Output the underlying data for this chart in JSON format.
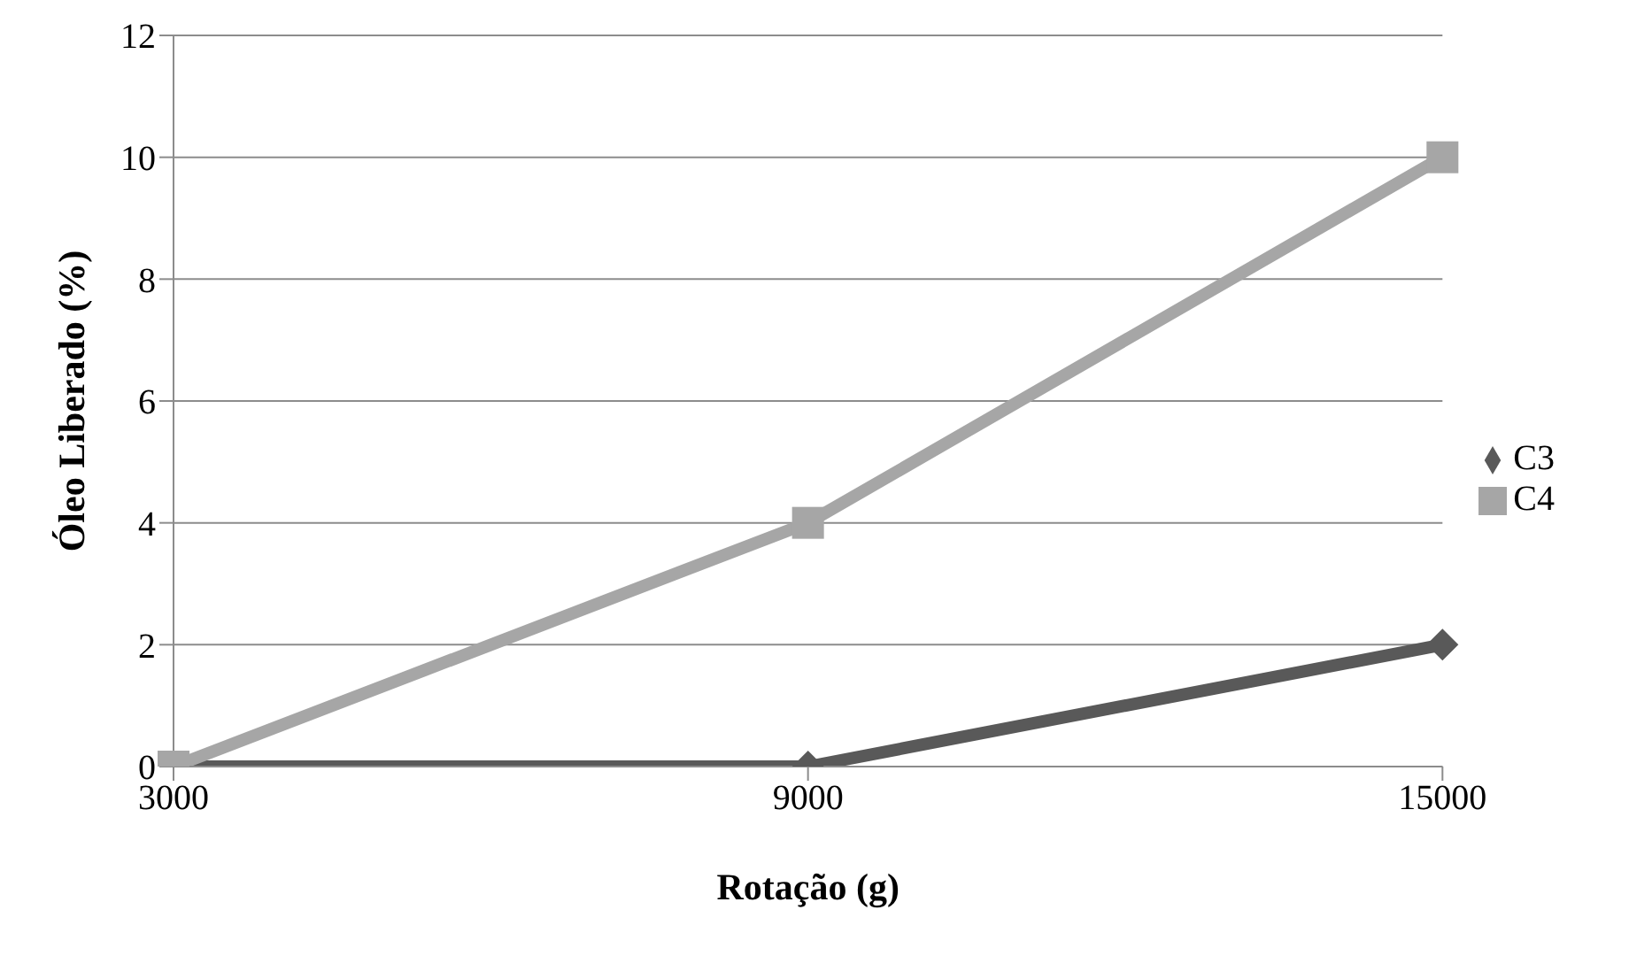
{
  "chart_data": {
    "type": "line",
    "xlabel": "Rotação (g)",
    "ylabel": "Óleo Liberado (%)",
    "categories": [
      "3000",
      "9000",
      "15000"
    ],
    "series": [
      {
        "name": "C3",
        "color": "#595959",
        "marker": "diamond",
        "values": [
          0,
          0,
          2
        ]
      },
      {
        "name": "C4",
        "color": "#a6a6a6",
        "marker": "square",
        "values": [
          0,
          4,
          10
        ]
      }
    ],
    "ylim": [
      0,
      12
    ],
    "yticks": [
      0,
      2,
      4,
      6,
      8,
      10,
      12
    ],
    "grid": "y",
    "legend": "right"
  }
}
